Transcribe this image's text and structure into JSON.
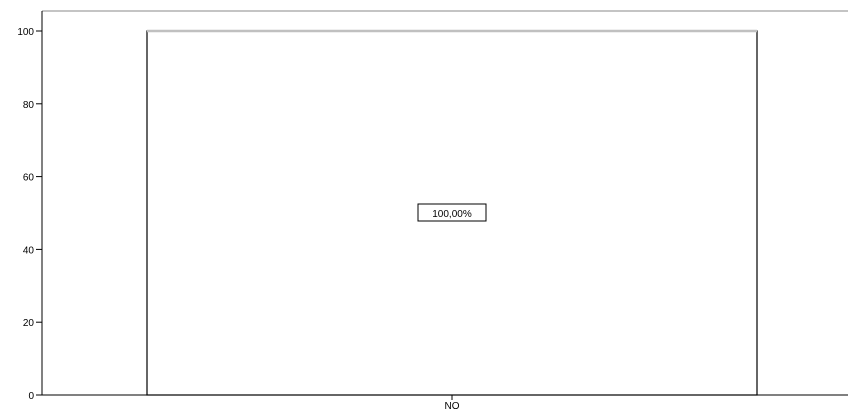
{
  "chart_data": {
    "type": "bar",
    "categories": [
      "NO"
    ],
    "values": [
      100
    ],
    "data_labels": [
      "100,00%"
    ],
    "ylim": [
      0,
      100
    ],
    "yticks": [
      0,
      20,
      40,
      60,
      80,
      100
    ],
    "grid": false,
    "colors": {
      "bar_fill": "#ffffff",
      "bar_stroke": "#000000",
      "bar_top_highlight": "#c0c0c0",
      "axis": "#000000",
      "frame": "#888888"
    }
  }
}
